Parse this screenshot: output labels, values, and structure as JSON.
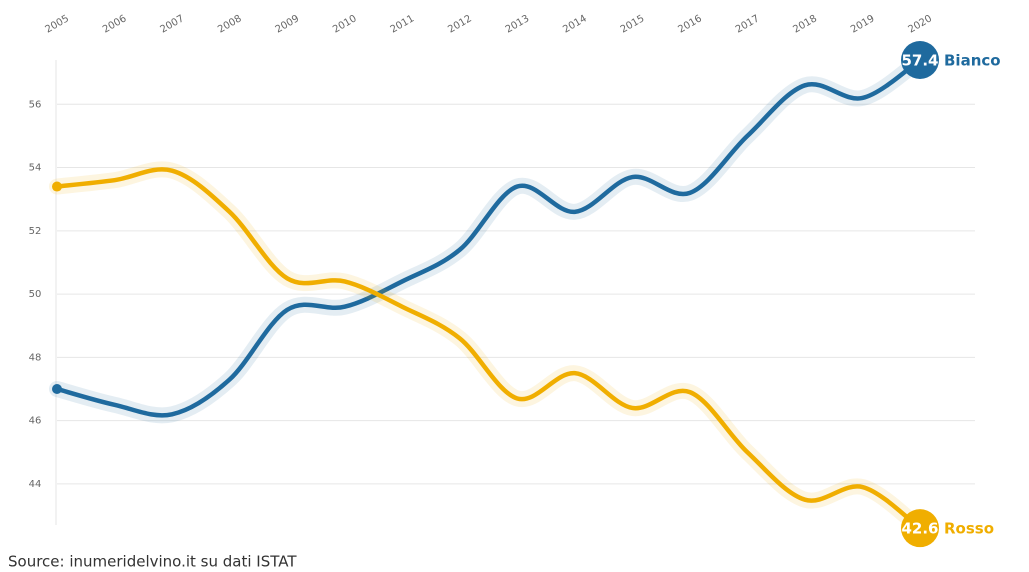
{
  "chart_data": {
    "type": "line",
    "x": [
      2005,
      2006,
      2007,
      2008,
      2009,
      2010,
      2011,
      2012,
      2013,
      2014,
      2015,
      2016,
      2017,
      2018,
      2019,
      2020
    ],
    "xlim": [
      2005,
      2020
    ],
    "series": [
      {
        "name": "Bianco",
        "color": "#1f6a9e",
        "values": [
          47.0,
          46.5,
          46.2,
          47.3,
          49.5,
          49.6,
          50.4,
          51.4,
          53.4,
          52.6,
          53.7,
          53.2,
          55.0,
          56.6,
          56.2,
          57.4
        ]
      },
      {
        "name": "Rosso",
        "color": "#f0ae00",
        "values": [
          53.4,
          53.6,
          53.9,
          52.6,
          50.5,
          50.4,
          49.6,
          48.6,
          46.7,
          47.5,
          46.4,
          46.9,
          45.0,
          43.5,
          43.9,
          42.6
        ]
      }
    ],
    "ylim": [
      42.7,
      57.4
    ],
    "yticks": [
      44,
      46,
      48,
      50,
      52,
      54,
      56
    ],
    "grid": true,
    "source": "Source: inumeridelvino.it su dati ISTAT"
  }
}
